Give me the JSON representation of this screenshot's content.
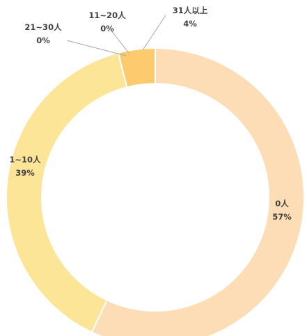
{
  "chart_data": {
    "type": "pie",
    "variant": "donut",
    "categories": [
      "0人",
      "1~10人",
      "21~30人",
      "11~20人",
      "31人以上"
    ],
    "values": [
      57,
      39,
      0,
      0,
      4
    ],
    "percent_labels": [
      "57%",
      "39%",
      "0%",
      "0%",
      "4%"
    ],
    "colors": [
      "#FDDDB5",
      "#FDE598",
      "#FDE598",
      "#FDE598",
      "#FDCB6E"
    ],
    "legend": "none",
    "start_angle": "12 o'clock",
    "direction": "clockwise",
    "segment_order": [
      "0人",
      "1~10人",
      "21~30人",
      "11~20人",
      "31人以上"
    ]
  }
}
